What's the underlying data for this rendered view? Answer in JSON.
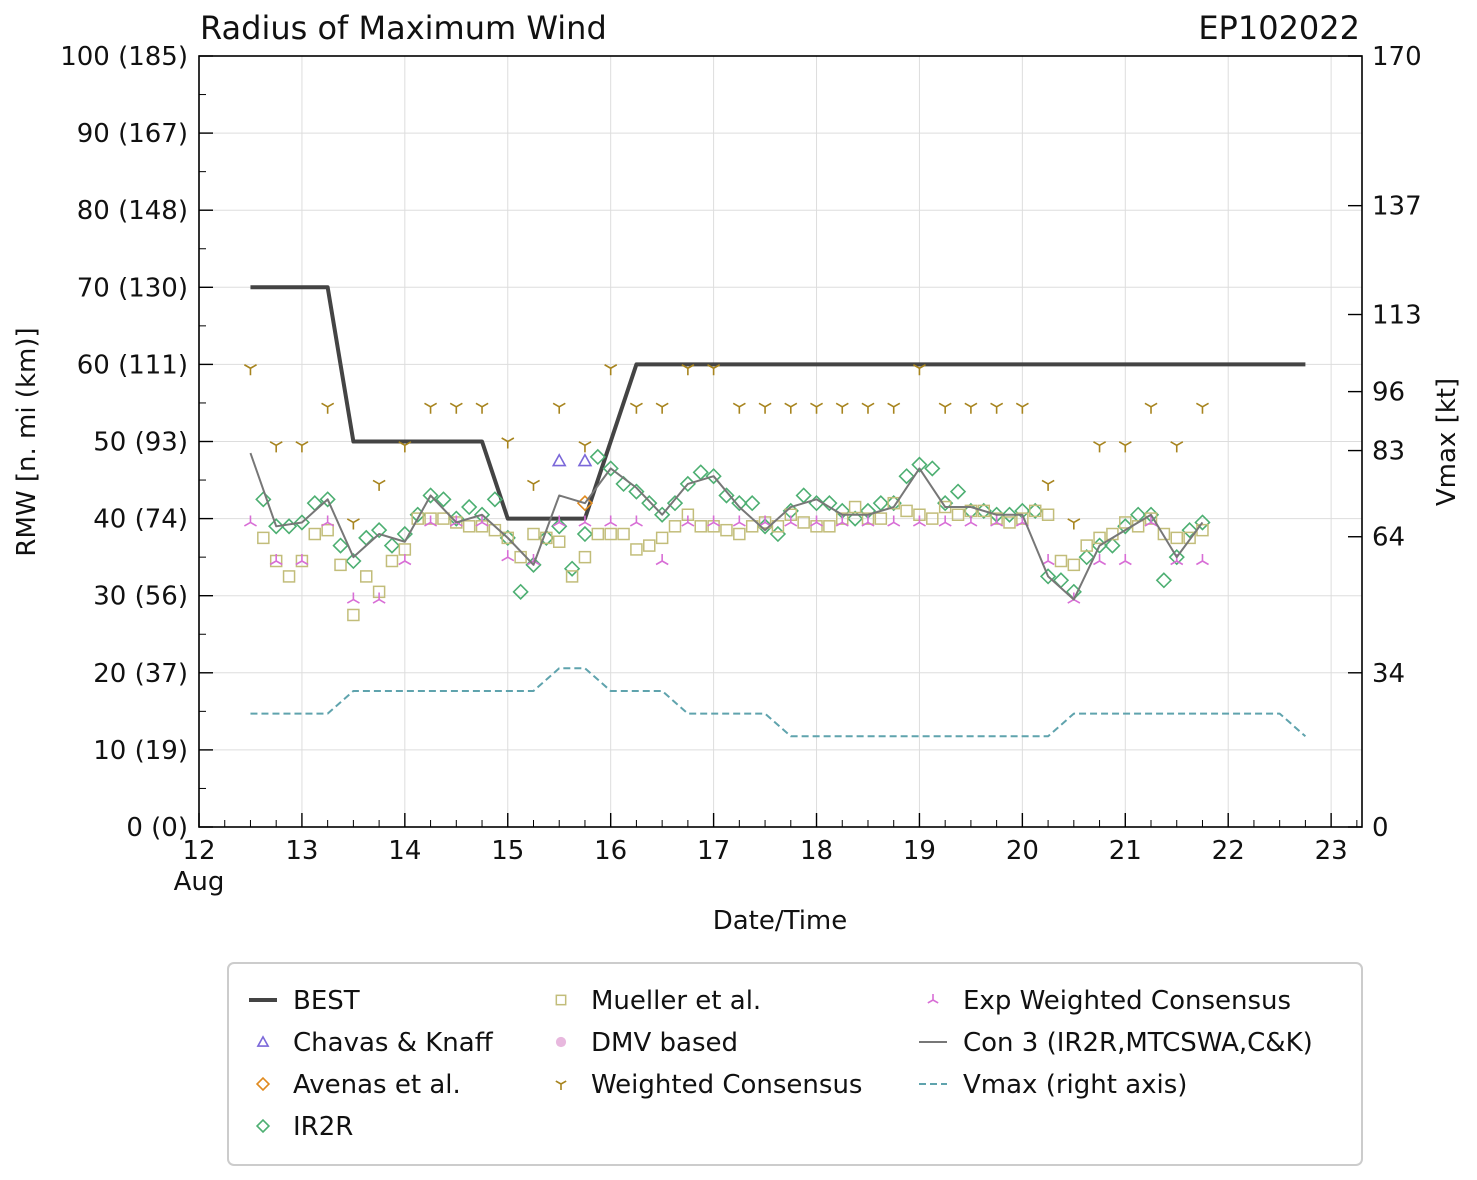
{
  "colors": {
    "best": "#444444",
    "chavas": "#7b68d9",
    "avenas": "#e08a1e",
    "ir2r": "#4daf72",
    "mueller": "#c2bd7a",
    "dmv": "#e8b8de",
    "weighted": "#a7841e",
    "exp": "#d86ed6",
    "con3": "#777777",
    "vmax": "#5fa3ad"
  },
  "chart_data": {
    "type": "line",
    "title": "Radius of Maximum Wind",
    "storm_id": "EP102022",
    "xlabel": "Date/Time",
    "ylabel": "RMW [n. mi (km)]",
    "ylabel_right": "Vmax [kt]",
    "xlim": [
      12,
      23.3
    ],
    "ylim": [
      0,
      100
    ],
    "y2lim": [
      0,
      170
    ],
    "x_ticks": [
      12,
      13,
      14,
      15,
      16,
      17,
      18,
      19,
      20,
      21,
      22,
      23
    ],
    "x_tick_labels": [
      "12",
      "13",
      "14",
      "15",
      "16",
      "17",
      "18",
      "19",
      "20",
      "21",
      "22",
      "23"
    ],
    "x_month_label": "Aug",
    "y_ticks": [
      0,
      10,
      20,
      30,
      40,
      50,
      60,
      70,
      80,
      90,
      100
    ],
    "y_tick_labels": [
      "0 (0)",
      "10 (19)",
      "20 (37)",
      "30 (56)",
      "40 (74)",
      "50 (93)",
      "60 (111)",
      "70 (130)",
      "80 (148)",
      "90 (167)",
      "100 (185)"
    ],
    "y2_ticks": [
      0,
      34,
      64,
      83,
      96,
      113,
      137,
      170
    ],
    "y2_tick_labels": [
      "0",
      "34",
      "64",
      "83",
      "96",
      "113",
      "137",
      "170"
    ],
    "grid": true,
    "legend_position": "below",
    "series": [
      {
        "name": "BEST",
        "key": "best",
        "style": "thick-line",
        "x": [
          12.5,
          13.25,
          13.5,
          14.75,
          15.0,
          15.75,
          16.25,
          22.75
        ],
        "y": [
          70,
          70,
          50,
          50,
          40,
          40,
          60,
          60
        ]
      },
      {
        "name": "Chavas & Knaff",
        "key": "chavas",
        "style": "triangle",
        "x": [
          15.5,
          15.75
        ],
        "y": [
          47.5,
          47.5
        ]
      },
      {
        "name": "Avenas et al.",
        "key": "avenas",
        "style": "diamond",
        "x": [
          15.75
        ],
        "y": [
          42
        ]
      },
      {
        "name": "IR2R",
        "key": "ir2r",
        "style": "diamond",
        "x": [
          12.625,
          12.75,
          12.875,
          13.0,
          13.125,
          13.25,
          13.375,
          13.5,
          13.625,
          13.75,
          13.875,
          14.0,
          14.125,
          14.25,
          14.375,
          14.5,
          14.625,
          14.75,
          14.875,
          15.0,
          15.125,
          15.25,
          15.375,
          15.5,
          15.625,
          15.75,
          15.875,
          16.0,
          16.125,
          16.25,
          16.375,
          16.5,
          16.625,
          16.75,
          16.875,
          17.0,
          17.125,
          17.25,
          17.375,
          17.5,
          17.625,
          17.75,
          17.875,
          18.0,
          18.125,
          18.25,
          18.375,
          18.5,
          18.625,
          18.75,
          18.875,
          19.0,
          19.125,
          19.25,
          19.375,
          19.5,
          19.625,
          19.75,
          19.875,
          20.0,
          20.125,
          20.25,
          20.375,
          20.5,
          20.625,
          20.75,
          20.875,
          21.0,
          21.125,
          21.25,
          21.375,
          21.5,
          21.625,
          21.75
        ],
        "y": [
          42.5,
          39,
          39,
          39.5,
          42,
          42.5,
          36.5,
          34.5,
          37.5,
          38.5,
          36.5,
          38,
          40.5,
          43,
          42.5,
          40,
          41.5,
          40.5,
          42.5,
          37.5,
          30.5,
          34,
          37.5,
          39,
          33.5,
          38,
          48,
          46.5,
          44.5,
          43.5,
          42,
          40.5,
          42,
          44.5,
          46,
          45.5,
          43,
          42,
          42,
          39,
          38,
          41,
          43,
          42,
          42,
          41,
          40,
          41,
          42,
          42,
          45.5,
          47,
          46.5,
          42,
          43.5,
          41,
          41,
          40.5,
          40.5,
          41,
          41,
          32.5,
          32,
          30.5,
          35,
          36.5,
          36.5,
          39,
          40.5,
          40.5,
          32,
          35,
          38.5,
          39.5
        ]
      },
      {
        "name": "Mueller et al.",
        "key": "mueller",
        "style": "square",
        "x": [
          12.625,
          12.75,
          12.875,
          13.0,
          13.125,
          13.25,
          13.375,
          13.5,
          13.625,
          13.75,
          13.875,
          14.0,
          14.125,
          14.25,
          14.375,
          14.5,
          14.625,
          14.75,
          14.875,
          15.0,
          15.125,
          15.25,
          15.375,
          15.5,
          15.625,
          15.75,
          15.875,
          16.0,
          16.125,
          16.25,
          16.375,
          16.5,
          16.625,
          16.75,
          16.875,
          17.0,
          17.125,
          17.25,
          17.375,
          17.5,
          17.625,
          17.75,
          17.875,
          18.0,
          18.125,
          18.25,
          18.375,
          18.5,
          18.625,
          18.75,
          18.875,
          19.0,
          19.125,
          19.25,
          19.375,
          19.5,
          19.625,
          19.75,
          19.875,
          20.0,
          20.125,
          20.25,
          20.375,
          20.5,
          20.625,
          20.75,
          20.875,
          21.0,
          21.125,
          21.25,
          21.375,
          21.5,
          21.625,
          21.75
        ],
        "y": [
          37.5,
          34.5,
          32.5,
          34.5,
          38,
          38.5,
          34,
          27.5,
          32.5,
          30.5,
          34.5,
          36,
          40,
          40,
          40,
          39.5,
          39,
          39,
          38.5,
          37.5,
          35,
          38,
          37.5,
          37,
          32.5,
          35,
          38,
          38,
          38,
          36,
          36.5,
          37.5,
          39,
          40.5,
          39,
          39,
          38.5,
          38,
          39,
          39.5,
          39,
          40.5,
          39.5,
          39,
          39,
          40,
          41.5,
          40,
          40,
          42,
          41,
          40.5,
          40,
          41.5,
          40.5,
          41,
          41,
          40,
          39.5,
          40,
          41,
          40.5,
          34.5,
          34,
          36.5,
          37.5,
          38,
          39.5,
          39,
          40,
          38,
          37.5,
          37.5,
          38.5
        ]
      },
      {
        "name": "DMV based",
        "key": "dmv",
        "style": "circle",
        "x": [],
        "y": []
      },
      {
        "name": "Weighted Consensus",
        "key": "weighted",
        "style": "tri-down",
        "x": [
          12.5,
          12.75,
          13.0,
          13.25,
          13.5,
          13.75,
          14.0,
          14.25,
          14.5,
          14.75,
          15.0,
          15.25,
          15.5,
          15.75,
          16.0,
          16.25,
          16.5,
          16.75,
          17.0,
          17.25,
          17.5,
          17.75,
          18.0,
          18.25,
          18.5,
          18.75,
          19.0,
          19.25,
          19.5,
          19.75,
          20.0,
          20.25,
          20.5,
          20.75,
          21.0,
          21.25,
          21.5,
          21.75
        ],
        "y": [
          59.5,
          49.5,
          49.5,
          54.5,
          39.5,
          44.5,
          49.5,
          54.5,
          54.5,
          54.5,
          50,
          44.5,
          54.5,
          49.5,
          59.5,
          54.5,
          54.5,
          59.5,
          59.5,
          54.5,
          54.5,
          54.5,
          54.5,
          54.5,
          54.5,
          54.5,
          59.5,
          54.5,
          54.5,
          54.5,
          54.5,
          44.5,
          39.5,
          49.5,
          49.5,
          54.5,
          49.5,
          54.5
        ]
      },
      {
        "name": "Exp Weighted Consensus",
        "key": "exp",
        "style": "tri-up",
        "x": [
          12.5,
          12.75,
          13.0,
          13.25,
          13.5,
          13.75,
          14.0,
          14.25,
          14.5,
          14.75,
          15.0,
          15.25,
          15.5,
          15.75,
          16.0,
          16.25,
          16.5,
          16.75,
          17.0,
          17.25,
          17.5,
          17.75,
          18.0,
          18.25,
          18.5,
          18.75,
          19.0,
          19.25,
          19.5,
          19.75,
          20.0,
          20.25,
          20.5,
          20.75,
          21.0,
          21.25,
          21.5,
          21.75
        ],
        "y": [
          39.5,
          34.5,
          34.5,
          39.5,
          29.5,
          29.5,
          34.5,
          39.5,
          39.5,
          39.5,
          35,
          34.5,
          39.5,
          39.5,
          39.5,
          39.5,
          34.5,
          39.5,
          39.5,
          39.5,
          39.5,
          39.5,
          39.5,
          39.5,
          39.5,
          39.5,
          39.5,
          39.5,
          39.5,
          39.5,
          39.5,
          34.5,
          29.5,
          34.5,
          34.5,
          39.5,
          34.5,
          34.5
        ]
      },
      {
        "name": "Con 3 (IR2R,MTCSWA,C&K)",
        "key": "con3",
        "style": "thin-line",
        "x": [
          12.5,
          12.75,
          13.0,
          13.25,
          13.5,
          13.75,
          14.0,
          14.25,
          14.5,
          14.75,
          15.0,
          15.25,
          15.5,
          15.75,
          16.0,
          16.25,
          16.5,
          16.75,
          17.0,
          17.25,
          17.5,
          17.75,
          18.0,
          18.25,
          18.5,
          18.75,
          19.0,
          19.25,
          19.5,
          19.75,
          20.0,
          20.25,
          20.5,
          20.75,
          21.0,
          21.25,
          21.5,
          21.75
        ],
        "y": [
          48.5,
          39,
          39.5,
          42.5,
          35,
          38,
          37,
          43,
          39.5,
          40.5,
          37.5,
          34,
          43,
          42,
          46.5,
          44,
          40.5,
          44.5,
          45.5,
          41.5,
          38.5,
          41.5,
          42.5,
          40.5,
          40.5,
          41.5,
          46.5,
          41.5,
          41.5,
          40.5,
          40.5,
          32.5,
          29.5,
          36.5,
          38.5,
          40.5,
          35,
          39.5
        ]
      },
      {
        "name": "Vmax (right axis)",
        "key": "vmax",
        "style": "dashed-line",
        "axis": "right",
        "x": [
          12.5,
          13.25,
          13.5,
          15.25,
          15.5,
          15.75,
          16.0,
          16.5,
          16.75,
          17.5,
          17.75,
          20.25,
          20.5,
          22.5,
          22.75
        ],
        "y": [
          25,
          25,
          30,
          30,
          35,
          35,
          30,
          30,
          25,
          25,
          20,
          20,
          25,
          25,
          20
        ]
      }
    ]
  }
}
